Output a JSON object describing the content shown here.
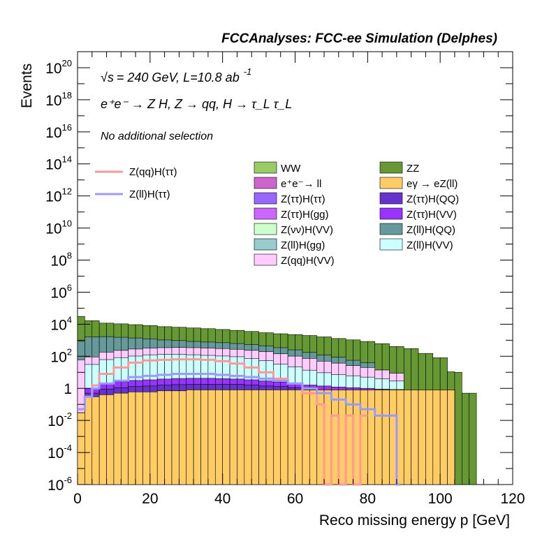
{
  "header": {
    "title": "FCCAnalyses: FCC-ee Simulation (Delphes)",
    "energy_line": "= 240 GeV, L=10.8 ab",
    "energy_sqrt": "√s",
    "energy_exp": "-1",
    "process_line": "e⁺e⁻ → Z H, Z → qq, H → τ_L τ_L",
    "selection_line": "No additional selection"
  },
  "chart_data": {
    "type": "histogram-stacked",
    "title": "FCCAnalyses: FCC-ee Simulation (Delphes)",
    "xlabel": "Reco missing energy p [GeV]",
    "ylabel": "Events",
    "xlim": [
      0,
      120
    ],
    "ylim": [
      1e-06,
      1e+21
    ],
    "yscale": "log",
    "grid": false,
    "x_ticks": [
      "0",
      "20",
      "40",
      "60",
      "80",
      "100",
      "120"
    ],
    "y_ticks": [
      {
        "base": "10",
        "exp": "-6"
      },
      {
        "base": "10",
        "exp": "-4"
      },
      {
        "base": "10",
        "exp": "-2"
      },
      {
        "base": "1",
        "exp": ""
      },
      {
        "base": "10",
        "exp": "2"
      },
      {
        "base": "10",
        "exp": "4"
      },
      {
        "base": "10",
        "exp": "6"
      },
      {
        "base": "10",
        "exp": "8"
      },
      {
        "base": "10",
        "exp": "10"
      },
      {
        "base": "10",
        "exp": "12"
      },
      {
        "base": "10",
        "exp": "14"
      },
      {
        "base": "10",
        "exp": "16"
      },
      {
        "base": "10",
        "exp": "18"
      },
      {
        "base": "10",
        "exp": "20"
      }
    ],
    "stack_order_bottom_to_top": [
      "eγ → eZ(ll)",
      "Z(ττ)H(QQ)",
      "Z(ττ)H(VV)",
      "Z(ll)H(VV)",
      "Z(qq)H(VV)",
      "Z(ll)H(QQ)",
      "ZZ"
    ],
    "series_stacked": [
      {
        "name": "eγ → eZ(ll)",
        "color": "#ffcc66",
        "edges": [
          0,
          2,
          6,
          10,
          14,
          18,
          22,
          26,
          30,
          34,
          38,
          42,
          46,
          50,
          54,
          58,
          62,
          66,
          70,
          74,
          78,
          82,
          86,
          90,
          94,
          98,
          102,
          104
        ],
        "values": [
          0.03,
          0.3,
          0.4,
          0.5,
          0.6,
          0.6,
          0.7,
          0.7,
          0.8,
          0.8,
          0.8,
          0.8,
          0.8,
          0.8,
          0.8,
          0.8,
          0.8,
          0.8,
          0.8,
          0.8,
          0.8,
          0.8,
          0.8,
          0.8,
          0.8,
          0.8,
          0.8
        ]
      },
      {
        "name": "Z(ττ)H(QQ)",
        "color": "#6633cc",
        "edges": [
          2,
          6,
          10,
          14,
          18,
          22,
          26,
          30,
          34,
          38,
          42,
          46,
          50,
          54,
          58,
          62
        ],
        "values": [
          0.2,
          0.5,
          0.6,
          0.7,
          0.8,
          0.9,
          1.0,
          1.0,
          1.0,
          1.0,
          1.0,
          0.8,
          0.6,
          0.5,
          0.3
        ]
      },
      {
        "name": "Z(ττ)H(VV)",
        "color": "#9933ff",
        "edges": [
          2,
          6,
          10,
          14,
          18,
          22,
          26,
          30,
          34,
          38,
          42,
          46,
          50,
          54,
          58,
          62,
          66,
          70,
          74,
          78,
          82,
          86,
          90
        ],
        "values": [
          0.5,
          1.2,
          1.5,
          1.8,
          2.0,
          2.2,
          2.4,
          2.4,
          2.4,
          2.2,
          2.0,
          1.8,
          1.5,
          1.2,
          1.0,
          0.8,
          0.6,
          0.4,
          0.3,
          0.2,
          0.1,
          0.05
        ]
      },
      {
        "name": "Z(ll)H(VV)",
        "color": "#ccffff",
        "edges": [
          2,
          6,
          10,
          14,
          18,
          22,
          26,
          30,
          34,
          38,
          42,
          46,
          50,
          54,
          58,
          62,
          66,
          70,
          74,
          78,
          82,
          86,
          90
        ],
        "values": [
          30,
          60,
          80,
          100,
          120,
          130,
          130,
          120,
          110,
          100,
          90,
          70,
          50,
          30,
          20,
          12,
          8,
          6,
          5,
          4,
          3,
          2
        ]
      },
      {
        "name": "Z(qq)H(VV)",
        "color": "#ffccff",
        "edges": [
          0,
          6,
          10,
          14,
          18,
          22,
          26,
          30,
          34,
          38,
          42,
          46,
          50,
          54,
          58,
          62,
          66,
          70,
          74,
          78,
          82,
          86,
          90
        ],
        "values": [
          60,
          120,
          150,
          180,
          200,
          210,
          220,
          220,
          210,
          200,
          180,
          160,
          140,
          110,
          80,
          60,
          40,
          30,
          20,
          15,
          10,
          6
        ]
      },
      {
        "name": "Z(ll)H(QQ)",
        "color": "#669999",
        "edges": [
          0,
          2,
          6,
          10,
          14,
          18,
          22,
          26,
          30,
          34,
          38,
          42,
          46,
          50,
          54,
          58,
          62,
          66,
          70,
          74,
          78,
          82
        ],
        "values": [
          800,
          1500,
          1500,
          1300,
          1100,
          900,
          700,
          600,
          500,
          450,
          400,
          350,
          300,
          250,
          200,
          150,
          100,
          70,
          50,
          30,
          20
        ]
      },
      {
        "name": "ZZ",
        "color": "#669933",
        "edges": [
          0,
          2,
          6,
          10,
          14,
          18,
          22,
          26,
          30,
          34,
          38,
          42,
          46,
          50,
          54,
          58,
          62,
          66,
          70,
          74,
          78,
          82,
          86,
          90,
          94,
          98,
          102,
          106,
          110
        ],
        "values": [
          30000,
          15000,
          10000,
          9000,
          8000,
          7000,
          6000,
          5500,
          5000,
          4500,
          4000,
          3500,
          3000,
          2500,
          2200,
          2000,
          1800,
          1500,
          1200,
          1000,
          800,
          600,
          400,
          300,
          150,
          80,
          10,
          0.5
        ]
      }
    ],
    "series_overlay": [
      {
        "name": "Z(qq)H(ττ)",
        "color": "#ff9999",
        "edges": [
          0,
          2,
          4,
          6,
          10,
          14,
          18,
          22,
          26,
          30,
          34,
          38,
          42,
          46,
          50,
          54,
          58,
          62,
          66,
          68,
          70,
          72,
          74,
          76,
          78,
          80
        ],
        "values": [
          0.05,
          0.3,
          1.5,
          8,
          20,
          40,
          55,
          60,
          65,
          65,
          60,
          50,
          35,
          20,
          10,
          4,
          2,
          0.5,
          0.1,
          1e-06,
          0.02,
          1e-06,
          0.02,
          1e-06,
          0.02
        ]
      },
      {
        "name": "Z(ll)H(ττ)",
        "color": "#9999ff",
        "edges": [
          0,
          2,
          4,
          6,
          10,
          14,
          18,
          22,
          26,
          30,
          34,
          38,
          42,
          46,
          50,
          54,
          58,
          62,
          66,
          70,
          74,
          78,
          82,
          86,
          88,
          89
        ],
        "values": [
          0.05,
          0.3,
          1.0,
          2,
          3,
          5,
          6,
          7,
          8,
          8,
          8,
          7,
          6,
          5,
          4,
          3,
          2,
          1,
          0.5,
          0.2,
          0.1,
          0.05,
          0.02,
          0.02,
          1e-06
        ]
      }
    ]
  },
  "legend": {
    "overlay": [
      {
        "label": "Z(qq)H(ττ)",
        "color": "#ff9999"
      },
      {
        "label": "Z(ll)H(ττ)",
        "color": "#9999ff"
      }
    ],
    "col1": [
      {
        "label": "WW",
        "color": "#99cc66"
      },
      {
        "label": "e⁺e⁻→ ll",
        "color": "#cc66cc"
      },
      {
        "label": "Z(ττ)H(ττ)",
        "color": "#9966ff"
      },
      {
        "label": "Z(ττ)H(gg)",
        "color": "#cc66ff"
      },
      {
        "label": "Z(νν)H(VV)",
        "color": "#ccffcc"
      },
      {
        "label": "Z(ll)H(gg)",
        "color": "#99cccc"
      },
      {
        "label": "Z(qq)H(VV)",
        "color": "#ffccff"
      }
    ],
    "col2": [
      {
        "label": "ZZ",
        "color": "#669933"
      },
      {
        "label": "eγ → eZ(ll)",
        "color": "#ffcc66"
      },
      {
        "label": "Z(ττ)H(QQ)",
        "color": "#6633cc"
      },
      {
        "label": "Z(ττ)H(VV)",
        "color": "#9933ff"
      },
      {
        "label": "Z(ll)H(QQ)",
        "color": "#669999"
      },
      {
        "label": "Z(ll)H(VV)",
        "color": "#ccffff"
      }
    ]
  }
}
